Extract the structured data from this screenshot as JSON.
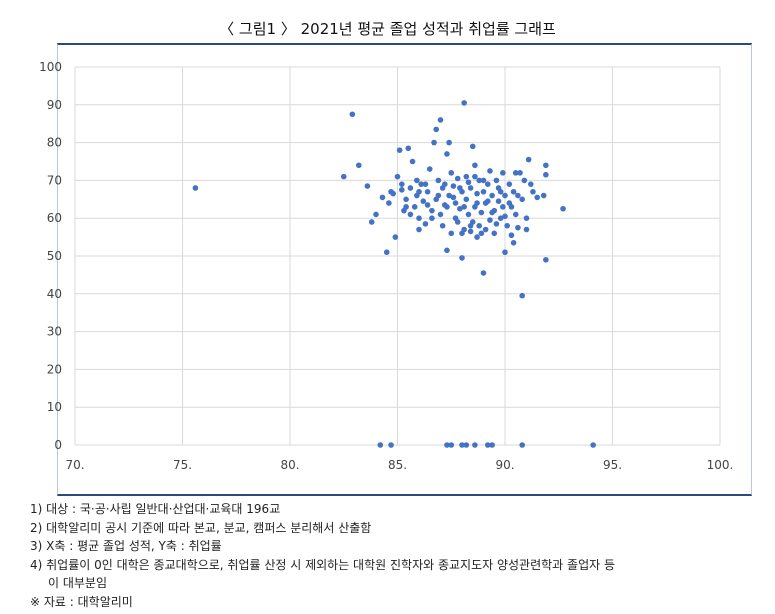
{
  "title": "〈 그림1 〉 2021년 평균 졸업 성적과 취업률 그래프",
  "notes": [
    "1) 대상 : 국·공·사립 일반대·산업대·교육대 196교",
    "2) 대학알리미 공시 기준에 따라 본교, 분교, 캠퍼스 분리해서 산출함",
    "3) X축 : 평균 졸업 성적, Y축 : 취업률",
    "4) 취업률이 0인 대학은 종교대학으로, 취업률 산정 시 제외하는 대학원 진학자와 종교지도자 양성관련학과 졸업자 등",
    "이 대부분임",
    "※ 자료 : 대학알리미"
  ],
  "chart_data": {
    "type": "scatter",
    "title": "",
    "xlabel": "",
    "ylabel": "",
    "xlim": [
      70,
      100
    ],
    "ylim": [
      0,
      100
    ],
    "xticks": [
      "70.",
      "75.",
      "80.",
      "85.",
      "90.",
      "95.",
      "100."
    ],
    "yticks": [
      "0",
      "10",
      "20",
      "30",
      "40",
      "50",
      "60",
      "70",
      "80",
      "90",
      "100"
    ],
    "grid": true,
    "marker_color": "#4472c4",
    "points": [
      [
        75.6,
        68
      ],
      [
        82.5,
        71
      ],
      [
        82.9,
        87.5
      ],
      [
        83.2,
        74
      ],
      [
        83.6,
        68.5
      ],
      [
        83.8,
        59
      ],
      [
        84.0,
        61
      ],
      [
        84.3,
        65.5
      ],
      [
        84.5,
        51
      ],
      [
        84.6,
        64
      ],
      [
        84.8,
        66.5
      ],
      [
        84.9,
        55
      ],
      [
        85.0,
        71
      ],
      [
        85.1,
        78
      ],
      [
        85.2,
        67.5
      ],
      [
        85.3,
        62
      ],
      [
        85.4,
        65
      ],
      [
        85.5,
        78.5
      ],
      [
        85.6,
        68
      ],
      [
        85.7,
        75
      ],
      [
        85.8,
        63
      ],
      [
        85.9,
        66
      ],
      [
        86.0,
        60
      ],
      [
        86.0,
        57
      ],
      [
        86.1,
        69
      ],
      [
        86.2,
        64.5
      ],
      [
        86.3,
        58.5
      ],
      [
        86.4,
        67
      ],
      [
        86.5,
        73
      ],
      [
        86.6,
        62
      ],
      [
        86.7,
        80
      ],
      [
        86.8,
        83.5
      ],
      [
        86.8,
        65
      ],
      [
        86.9,
        70
      ],
      [
        87.0,
        86
      ],
      [
        87.0,
        61
      ],
      [
        87.1,
        68
      ],
      [
        87.2,
        63.5
      ],
      [
        87.3,
        77
      ],
      [
        87.3,
        51.5
      ],
      [
        87.4,
        80
      ],
      [
        87.4,
        66
      ],
      [
        87.5,
        56
      ],
      [
        87.5,
        72
      ],
      [
        87.6,
        68.5
      ],
      [
        87.7,
        64
      ],
      [
        87.8,
        59
      ],
      [
        87.8,
        70.5
      ],
      [
        87.9,
        62.5
      ],
      [
        88.0,
        67
      ],
      [
        88.0,
        49.5
      ],
      [
        88.1,
        90.5
      ],
      [
        88.1,
        57
      ],
      [
        88.2,
        65
      ],
      [
        88.2,
        71
      ],
      [
        88.3,
        61
      ],
      [
        88.4,
        56.5
      ],
      [
        88.4,
        68
      ],
      [
        88.5,
        79
      ],
      [
        88.5,
        59
      ],
      [
        88.6,
        63
      ],
      [
        88.6,
        74
      ],
      [
        88.7,
        66.5
      ],
      [
        88.7,
        55
      ],
      [
        88.8,
        70
      ],
      [
        88.8,
        58
      ],
      [
        88.9,
        61.5
      ],
      [
        89.0,
        45.5
      ],
      [
        89.0,
        67
      ],
      [
        89.1,
        64
      ],
      [
        89.1,
        57
      ],
      [
        89.2,
        69
      ],
      [
        89.3,
        72.5
      ],
      [
        89.3,
        59.5
      ],
      [
        89.4,
        66
      ],
      [
        89.5,
        62
      ],
      [
        89.5,
        56
      ],
      [
        89.6,
        70
      ],
      [
        89.7,
        68
      ],
      [
        89.7,
        64.5
      ],
      [
        89.8,
        60
      ],
      [
        89.9,
        72
      ],
      [
        90.0,
        51
      ],
      [
        90.0,
        66
      ],
      [
        90.1,
        58
      ],
      [
        90.2,
        69
      ],
      [
        90.3,
        63
      ],
      [
        90.3,
        55.5
      ],
      [
        90.4,
        67
      ],
      [
        90.5,
        61
      ],
      [
        90.6,
        57.5
      ],
      [
        90.7,
        72
      ],
      [
        90.8,
        39.5
      ],
      [
        90.8,
        65
      ],
      [
        90.9,
        70
      ],
      [
        91.0,
        60
      ],
      [
        91.0,
        57
      ],
      [
        91.1,
        75.5
      ],
      [
        91.3,
        67
      ],
      [
        91.5,
        65.5
      ],
      [
        91.9,
        74
      ],
      [
        91.9,
        71.5
      ],
      [
        91.9,
        49
      ],
      [
        91.8,
        66
      ],
      [
        92.7,
        62.5
      ],
      [
        85.2,
        69
      ],
      [
        85.6,
        61
      ],
      [
        86.3,
        69
      ],
      [
        86.9,
        66
      ],
      [
        87.2,
        69
      ],
      [
        87.6,
        65.5
      ],
      [
        87.9,
        68
      ],
      [
        88.3,
        69.5
      ],
      [
        88.7,
        64
      ],
      [
        89.0,
        70
      ],
      [
        89.4,
        61.5
      ],
      [
        89.8,
        67
      ],
      [
        90.2,
        64
      ],
      [
        90.5,
        72
      ],
      [
        91.2,
        69
      ],
      [
        84.7,
        67
      ],
      [
        85.4,
        63
      ],
      [
        86.0,
        67
      ],
      [
        86.6,
        60
      ],
      [
        87.1,
        58
      ],
      [
        87.7,
        60
      ],
      [
        88.0,
        56
      ],
      [
        88.4,
        58
      ],
      [
        88.9,
        56
      ],
      [
        89.6,
        58.5
      ],
      [
        90.0,
        60.5
      ],
      [
        90.4,
        53.5
      ],
      [
        86.4,
        63.5
      ],
      [
        87.3,
        63
      ],
      [
        88.1,
        63
      ],
      [
        89.2,
        64.5
      ],
      [
        90.6,
        66
      ],
      [
        85.9,
        70
      ],
      [
        88.6,
        71
      ],
      [
        89.9,
        63
      ],
      [
        84.2,
        0
      ],
      [
        84.7,
        0
      ],
      [
        87.3,
        0
      ],
      [
        87.5,
        0
      ],
      [
        88.0,
        0
      ],
      [
        88.2,
        0
      ],
      [
        88.6,
        0
      ],
      [
        89.2,
        0
      ],
      [
        89.4,
        0
      ],
      [
        90.8,
        0
      ],
      [
        94.1,
        0
      ]
    ]
  }
}
